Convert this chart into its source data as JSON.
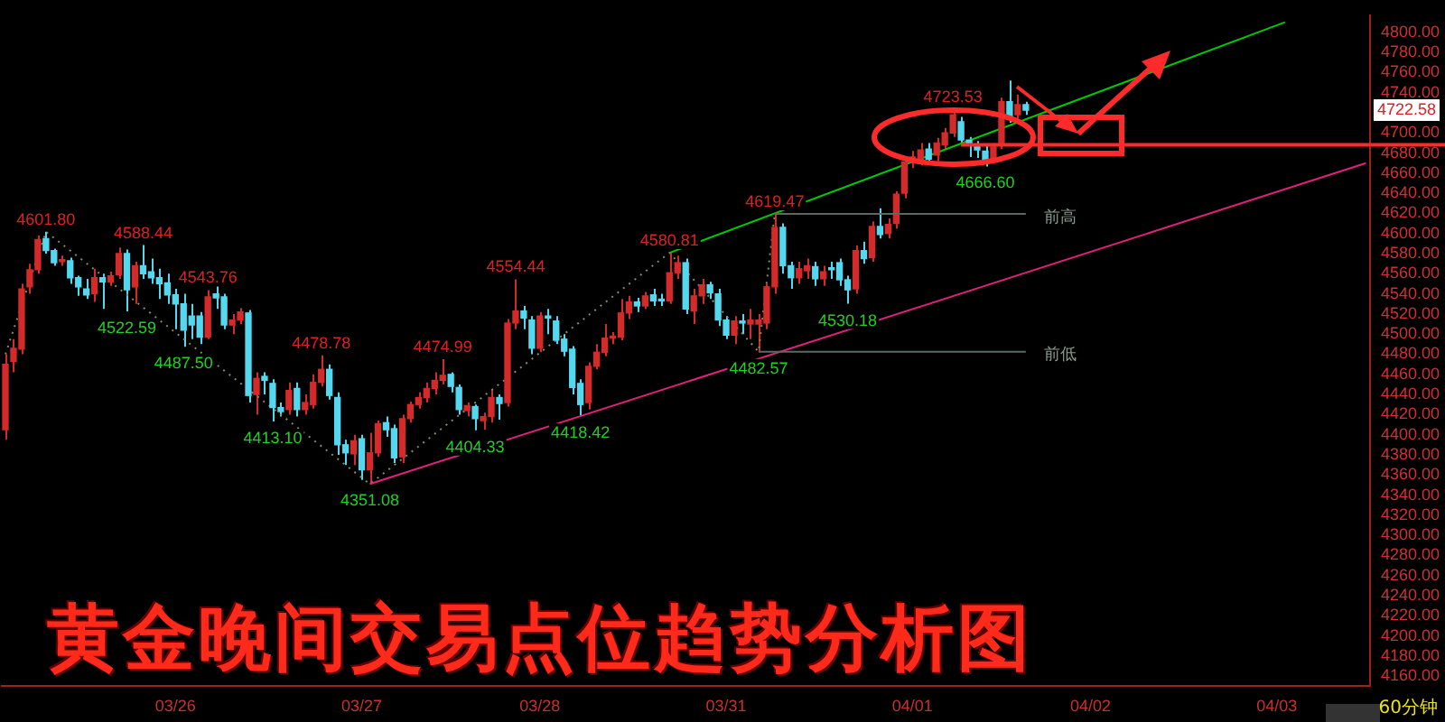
{
  "chart_data": {
    "type": "candlestick",
    "title": "黄金晚间交易点位趋势分析图",
    "categories": [
      null,
      null,
      null,
      null,
      null,
      null,
      null,
      null,
      null,
      null,
      null,
      null,
      null,
      null,
      null,
      null,
      null,
      null,
      null,
      null,
      null,
      "03/26",
      null,
      null,
      null,
      null,
      null,
      null,
      null,
      null,
      null,
      null,
      null,
      null,
      null,
      null,
      null,
      null,
      null,
      null,
      null,
      null,
      null,
      null,
      "03/27",
      null,
      null,
      null,
      null,
      null,
      null,
      null,
      null,
      null,
      null,
      null,
      null,
      null,
      null,
      null,
      null,
      null,
      null,
      null,
      null,
      null,
      "03/28",
      null,
      null,
      null,
      null,
      null,
      null,
      null,
      null,
      null,
      null,
      null,
      null,
      null,
      null,
      null,
      null,
      null,
      null,
      null,
      null,
      null,
      null,
      "03/31",
      null,
      null,
      null,
      null,
      null,
      null,
      null,
      null,
      null,
      null,
      null,
      null,
      null,
      null,
      null,
      null,
      null,
      null,
      null,
      null,
      null,
      null,
      "04/01",
      null,
      null,
      null,
      null,
      null,
      null,
      null,
      null,
      null,
      null,
      null,
      null,
      null,
      null,
      null,
      null,
      null,
      null,
      null,
      null,
      null,
      "04/02",
      null,
      null,
      null,
      null,
      null,
      null,
      null,
      null,
      null,
      null,
      null,
      null,
      null,
      null,
      null,
      null,
      null,
      null,
      null,
      null,
      null,
      null,
      "04/03",
      null,
      null,
      null,
      null,
      null,
      null,
      null,
      null,
      null,
      null,
      null
    ],
    "ohlc": [
      [
        4405,
        4480,
        4395,
        4470
      ],
      [
        4473,
        4495,
        4462,
        4486
      ],
      [
        4485,
        4550,
        4480,
        4545
      ],
      [
        4547,
        4570,
        4540,
        4564
      ],
      [
        4564,
        4598,
        4560,
        4594
      ],
      [
        4595,
        4601.8,
        4580,
        4583
      ],
      [
        4583,
        4585,
        4568,
        4571
      ],
      [
        4572,
        4578,
        4568,
        4574
      ],
      [
        4573,
        4576,
        4550,
        4556
      ],
      [
        4556,
        4558,
        4538,
        4547
      ],
      [
        4545,
        4555,
        4535,
        4539
      ],
      [
        4540,
        4565,
        4532,
        4556
      ],
      [
        4556,
        4560,
        4525,
        4552
      ],
      [
        4552,
        4562,
        4548,
        4558
      ],
      [
        4559,
        4586,
        4555,
        4580
      ],
      [
        4580,
        4584,
        4522.59,
        4544
      ],
      [
        4547,
        4572,
        4530,
        4568
      ],
      [
        4568,
        4588.44,
        4555,
        4560
      ],
      [
        4562,
        4575,
        4550,
        4556
      ],
      [
        4556,
        4565,
        4535,
        4550
      ],
      [
        4551,
        4560,
        4530,
        4539
      ],
      [
        4539,
        4545,
        4505,
        4530
      ],
      [
        4530,
        4540,
        4487.5,
        4504
      ],
      [
        4518,
        4530,
        4495,
        4509
      ],
      [
        4518,
        4522,
        4490,
        4497
      ],
      [
        4497,
        4543.76,
        4495,
        4537
      ],
      [
        4540,
        4548,
        4525,
        4536
      ],
      [
        4537,
        4540,
        4505,
        4509
      ],
      [
        4509,
        4520,
        4500,
        4514
      ],
      [
        4514,
        4526,
        4510,
        4522
      ],
      [
        4521,
        4524,
        4432,
        4439
      ],
      [
        4440,
        4462,
        4420,
        4456
      ],
      [
        4458,
        4462,
        4440,
        4454
      ],
      [
        4451,
        4455,
        4413.1,
        4427
      ],
      [
        4427,
        4432,
        4418,
        4423
      ],
      [
        4425,
        4452,
        4420,
        4444
      ],
      [
        4446,
        4452,
        4418,
        4425
      ],
      [
        4425,
        4440,
        4420,
        4432
      ],
      [
        4430,
        4460,
        4426,
        4452
      ],
      [
        4452,
        4478.78,
        4448,
        4465
      ],
      [
        4465,
        4470,
        4435,
        4439
      ],
      [
        4437,
        4442,
        4380,
        4390
      ],
      [
        4390,
        4395,
        4370,
        4382
      ],
      [
        4381,
        4400,
        4370,
        4394
      ],
      [
        4396,
        4400,
        4355,
        4365
      ],
      [
        4365,
        4402,
        4351.08,
        4382
      ],
      [
        4382,
        4414,
        4378,
        4411
      ],
      [
        4412,
        4418,
        4398,
        4405
      ],
      [
        4406,
        4410,
        4372,
        4377
      ],
      [
        4378,
        4420,
        4372,
        4416
      ],
      [
        4416,
        4433,
        4412,
        4430
      ],
      [
        4430,
        4442,
        4426,
        4437
      ],
      [
        4437,
        4452,
        4432,
        4446
      ],
      [
        4446,
        4462,
        4440,
        4454
      ],
      [
        4454,
        4474.99,
        4450,
        4459
      ],
      [
        4460,
        4462,
        4442,
        4448
      ],
      [
        4447,
        4450,
        4420,
        4425
      ],
      [
        4424,
        4432,
        4418,
        4429
      ],
      [
        4428,
        4430,
        4404.33,
        4416
      ],
      [
        4414,
        4422,
        4405,
        4418
      ],
      [
        4418,
        4445,
        4412,
        4437
      ],
      [
        4437,
        4440,
        4415,
        4431
      ],
      [
        4432,
        4515,
        4428,
        4511
      ],
      [
        4511,
        4554.44,
        4505,
        4523
      ],
      [
        4523,
        4528,
        4505,
        4516
      ],
      [
        4514,
        4518,
        4480,
        4486
      ],
      [
        4486,
        4522,
        4482,
        4518
      ],
      [
        4518,
        4525,
        4500,
        4516
      ],
      [
        4513,
        4518,
        4490,
        4494
      ],
      [
        4495,
        4500,
        4478,
        4483
      ],
      [
        4485,
        4488,
        4440,
        4447
      ],
      [
        4451,
        4455,
        4418.42,
        4430
      ],
      [
        4432,
        4472,
        4425,
        4468
      ],
      [
        4468,
        4490,
        4465,
        4482
      ],
      [
        4482,
        4510,
        4478,
        4496
      ],
      [
        4496,
        4502,
        4490,
        4498
      ],
      [
        4497,
        4535,
        4494,
        4521
      ],
      [
        4521,
        4538,
        4515,
        4532
      ],
      [
        4532,
        4536,
        4522,
        4528
      ],
      [
        4528,
        4542,
        4525,
        4538
      ],
      [
        4539,
        4545,
        4528,
        4533
      ],
      [
        4534,
        4540,
        4528,
        4533
      ],
      [
        4533,
        4580.81,
        4530,
        4561
      ],
      [
        4561,
        4578,
        4555,
        4571
      ],
      [
        4571,
        4575,
        4520,
        4525
      ],
      [
        4523,
        4545,
        4510,
        4538
      ],
      [
        4538,
        4555,
        4530,
        4549
      ],
      [
        4549,
        4552,
        4535,
        4541
      ],
      [
        4540,
        4545,
        4508,
        4514
      ],
      [
        4514,
        4518,
        4495,
        4499
      ],
      [
        4499,
        4518,
        4490,
        4513
      ],
      [
        4513,
        4520,
        4500,
        4511
      ],
      [
        4510,
        4525,
        4495,
        4514
      ],
      [
        4510,
        4520,
        4482.57,
        4514
      ],
      [
        4511,
        4550,
        4505,
        4547
      ],
      [
        4547,
        4619.47,
        4540,
        4606
      ],
      [
        4606,
        4610,
        4560,
        4568
      ],
      [
        4568,
        4572,
        4545,
        4556
      ],
      [
        4556,
        4572,
        4550,
        4565
      ],
      [
        4563,
        4575,
        4555,
        4568
      ],
      [
        4567,
        4572,
        4548,
        4555
      ],
      [
        4555,
        4568,
        4548,
        4562
      ],
      [
        4566,
        4572,
        4555,
        4564
      ],
      [
        4571,
        4575,
        4548,
        4554
      ],
      [
        4554,
        4558,
        4530.18,
        4544
      ],
      [
        4545,
        4588,
        4540,
        4583
      ],
      [
        4583,
        4592,
        4570,
        4575
      ],
      [
        4576,
        4612,
        4572,
        4607
      ],
      [
        4607,
        4625,
        4595,
        4599
      ],
      [
        4600,
        4615,
        4595,
        4609
      ],
      [
        4610,
        4642,
        4605,
        4639
      ],
      [
        4640,
        4675,
        4635,
        4671
      ],
      [
        4671,
        4682,
        4665,
        4676
      ],
      [
        4672,
        4690,
        4668,
        4683
      ],
      [
        4684,
        4690,
        4668,
        4674
      ],
      [
        4678,
        4695,
        4672,
        4690
      ],
      [
        4688,
        4705,
        4684,
        4700
      ],
      [
        4700,
        4723.53,
        4696,
        4718
      ],
      [
        4711,
        4716,
        4688,
        4693
      ],
      [
        4693,
        4696,
        4676,
        4688
      ],
      [
        4687,
        4692,
        4675,
        4683
      ],
      [
        4682,
        4688,
        4666.6,
        4674
      ],
      [
        4675,
        4690,
        4670,
        4686
      ],
      [
        4688,
        4735,
        4684,
        4731
      ],
      [
        4731,
        4752,
        4710,
        4714
      ],
      [
        4718,
        4738,
        4712,
        4728
      ],
      [
        4728,
        4731,
        4718,
        4722.58
      ],
      null,
      null,
      null,
      null,
      null,
      null,
      null,
      null,
      null,
      null,
      null,
      null,
      null,
      null,
      null,
      null,
      null,
      null,
      null,
      null,
      null,
      null,
      null,
      null,
      null,
      null,
      null,
      null,
      null,
      null,
      null,
      null,
      null,
      null,
      null,
      null,
      null,
      null,
      null,
      null,
      null,
      null
    ],
    "colors": [
      "#d42a2a",
      "#d42a2a",
      "#d42a2a",
      "#d42a2a",
      "#d42a2a",
      "#54d8f0",
      "#54d8f0",
      "#d42a2a",
      "#54d8f0",
      "#54d8f0",
      "#54d8f0",
      "#d42a2a",
      "#54d8f0",
      "#d42a2a",
      "#d42a2a",
      "#54d8f0",
      "#d42a2a",
      "#54d8f0",
      "#54d8f0",
      "#54d8f0",
      "#54d8f0",
      "#54d8f0",
      "#54d8f0",
      "#54d8f0",
      "#54d8f0",
      "#d42a2a",
      "#54d8f0",
      "#54d8f0",
      "#d42a2a",
      "#d42a2a",
      "#54d8f0",
      "#d42a2a",
      "#54d8f0",
      "#54d8f0",
      "#54d8f0",
      "#d42a2a",
      "#54d8f0",
      "#d42a2a",
      "#d42a2a",
      "#d42a2a",
      "#54d8f0",
      "#54d8f0",
      "#54d8f0",
      "#d42a2a",
      "#54d8f0",
      "#d42a2a",
      "#d42a2a",
      "#54d8f0",
      "#54d8f0",
      "#d42a2a",
      "#d42a2a",
      "#d42a2a",
      "#d42a2a",
      "#d42a2a",
      "#d42a2a",
      "#54d8f0",
      "#54d8f0",
      "#d42a2a",
      "#54d8f0",
      "#d42a2a",
      "#d42a2a",
      "#54d8f0",
      "#d42a2a",
      "#d42a2a",
      "#54d8f0",
      "#54d8f0",
      "#d42a2a",
      "#54d8f0",
      "#54d8f0",
      "#54d8f0",
      "#54d8f0",
      "#54d8f0",
      "#d42a2a",
      "#d42a2a",
      "#d42a2a",
      "#d42a2a",
      "#d42a2a",
      "#d42a2a",
      "#54d8f0",
      "#d42a2a",
      "#54d8f0",
      "#54d8f0",
      "#d42a2a",
      "#d42a2a",
      "#54d8f0",
      "#d42a2a",
      "#d42a2a",
      "#54d8f0",
      "#54d8f0",
      "#54d8f0",
      "#d42a2a",
      "#54d8f0",
      "#d42a2a",
      "#d42a2a",
      "#d42a2a",
      "#d42a2a",
      "#54d8f0",
      "#54d8f0",
      "#d42a2a",
      "#d42a2a",
      "#54d8f0",
      "#d42a2a",
      "#54d8f0",
      "#54d8f0",
      "#54d8f0",
      "#d42a2a",
      "#54d8f0",
      "#d42a2a",
      "#54d8f0",
      "#d42a2a",
      "#d42a2a",
      "#d42a2a",
      "#d42a2a",
      "#d42a2a",
      "#54d8f0",
      "#d42a2a",
      "#d42a2a",
      "#d42a2a",
      "#54d8f0",
      "#54d8f0",
      "#54d8f0",
      "#54d8f0",
      "#d42a2a",
      "#d42a2a",
      "#54d8f0",
      "#d42a2a",
      "#54d8f0",
      null,
      null,
      null,
      null,
      null,
      null,
      null,
      null,
      null,
      null,
      null,
      null,
      null,
      null,
      null,
      null,
      null,
      null,
      null,
      null,
      null,
      null,
      null,
      null,
      null,
      null,
      null,
      null,
      null,
      null,
      null,
      null,
      null,
      null,
      null,
      null,
      null,
      null,
      null,
      null,
      null,
      null
    ],
    "series": [
      {
        "type": "line",
        "color": "#00c800",
        "values": [
          null,
          null,
          null,
          null,
          null,
          null,
          null,
          null,
          null,
          null,
          null,
          null,
          null,
          null,
          null,
          null,
          null,
          null,
          null,
          null,
          null,
          null,
          null,
          null,
          null,
          null,
          null,
          null,
          null,
          null,
          null,
          null,
          null,
          null,
          null,
          null,
          null,
          null,
          null,
          null,
          null,
          null,
          null,
          null,
          null,
          null,
          null,
          null,
          null,
          null,
          null,
          null,
          null,
          null,
          null,
          null,
          null,
          null,
          null,
          null,
          null,
          null,
          null,
          null,
          null,
          null,
          null,
          null,
          null,
          null,
          null,
          null,
          null,
          null,
          null,
          null,
          null,
          null,
          null,
          null,
          null,
          null,
          4580.81,
          null,
          null,
          null,
          null,
          null,
          null,
          null,
          null,
          null,
          null,
          null,
          null,
          null,
          null,
          null,
          null,
          null,
          null,
          null,
          null,
          null,
          null,
          null,
          null,
          null,
          null,
          null,
          null,
          null,
          null,
          null,
          null,
          null,
          null,
          null,
          null,
          null,
          null,
          null,
          null,
          null,
          null,
          null,
          null,
          null,
          null,
          null,
          null,
          null,
          null,
          null,
          null,
          null,
          null,
          null,
          null,
          null,
          null,
          null,
          null,
          null,
          null,
          null,
          null,
          null,
          null,
          null,
          null,
          null,
          null,
          null,
          null,
          null,
          null,
          null,
          4810,
          null,
          null,
          null,
          null,
          null,
          null,
          null,
          null,
          null,
          null
        ]
      },
      {
        "type": "line",
        "color": "#e0207a",
        "values": [
          null,
          null,
          null,
          null,
          null,
          null,
          null,
          null,
          null,
          null,
          null,
          null,
          null,
          null,
          null,
          null,
          null,
          null,
          null,
          null,
          null,
          null,
          null,
          null,
          null,
          null,
          null,
          null,
          null,
          null,
          null,
          null,
          null,
          null,
          null,
          null,
          null,
          null,
          null,
          null,
          null,
          null,
          null,
          null,
          null,
          4351.08,
          null,
          null,
          null,
          null,
          null,
          null,
          null,
          null,
          null,
          null,
          null,
          null,
          null,
          null,
          null,
          null,
          null,
          null,
          null,
          null,
          null,
          null,
          null,
          null,
          null,
          null,
          null,
          null,
          null,
          null,
          null,
          null,
          null,
          null,
          null,
          null,
          null,
          null,
          null,
          null,
          null,
          null,
          null,
          null,
          null,
          null,
          null,
          null,
          null,
          null,
          null,
          null,
          null,
          null,
          null,
          null,
          null,
          null,
          null,
          null,
          null,
          null,
          null,
          null,
          null,
          null,
          null,
          null,
          null,
          null,
          null,
          null,
          null,
          null,
          null,
          null,
          null,
          null,
          null,
          null,
          null,
          null,
          null,
          null,
          null,
          null,
          null,
          null,
          null,
          null,
          null,
          null,
          null,
          null,
          null,
          null,
          null,
          null,
          null,
          null,
          null,
          null,
          null,
          null,
          null,
          null,
          null,
          null,
          null,
          null,
          null,
          null,
          null,
          null,
          null,
          null,
          null,
          null,
          null,
          null,
          null,
          null,
          4670
        ]
      },
      {
        "type": "line",
        "color": "#8a8a60",
        "line_style": "dotted",
        "values": [
          4480,
          null,
          null,
          null,
          null,
          4601.8,
          null,
          null,
          null,
          null,
          null,
          null,
          null,
          null,
          null,
          null,
          null,
          null,
          null,
          null,
          null,
          null,
          null,
          null,
          null,
          null,
          null,
          null,
          null,
          null,
          null,
          null,
          null,
          null,
          null,
          null,
          null,
          null,
          null,
          null,
          null,
          null,
          null,
          null,
          null,
          4351.08,
          null,
          null,
          null,
          null,
          null,
          null,
          null,
          null,
          null,
          null,
          null,
          null,
          null,
          null,
          null,
          null,
          null,
          null,
          null,
          null,
          null,
          null,
          null,
          null,
          null,
          null,
          null,
          null,
          null,
          null,
          null,
          null,
          null,
          null,
          null,
          null,
          4580.81,
          null,
          null,
          null,
          null,
          null,
          null,
          null,
          null,
          null,
          null,
          4482.57,
          null,
          4619.47,
          null,
          null,
          null,
          null,
          null,
          null,
          null,
          null,
          null,
          null,
          null,
          null,
          null,
          null,
          null,
          null,
          null,
          null,
          null,
          null,
          null,
          null,
          null,
          null,
          null,
          null,
          null,
          null,
          null,
          null,
          null,
          null,
          null,
          null,
          null,
          null,
          null,
          null,
          null,
          null,
          null,
          null,
          null,
          null,
          null,
          null,
          null,
          null,
          null,
          null,
          null,
          null,
          null,
          null,
          null,
          null,
          null,
          null,
          null,
          null,
          null,
          null,
          null,
          null,
          null,
          null,
          null,
          null,
          null,
          null,
          null,
          null,
          null
        ]
      }
    ],
    "ref_lines": [
      {
        "axis": "y",
        "value": 4619.47,
        "label": "前高",
        "color": "#5a6a62"
      },
      {
        "axis": "y",
        "value": 4482.57,
        "label": "前低",
        "color": "#5a6a62"
      },
      {
        "axis": "y",
        "value": 4688,
        "color": "#ff2a2a"
      }
    ],
    "annotations": [
      {
        "text": "4601.80",
        "y": 4601.8
      },
      {
        "text": "4588.44",
        "y": 4588.44
      },
      {
        "text": "4543.76",
        "y": 4543.76
      },
      {
        "text": "4522.59",
        "y": 4522.59
      },
      {
        "text": "4487.50",
        "y": 4487.5
      },
      {
        "text": "4478.78",
        "y": 4478.78
      },
      {
        "text": "4413.10",
        "y": 4413.1
      },
      {
        "text": "4351.08",
        "y": 4351.08
      },
      {
        "text": "4474.99",
        "y": 4474.99
      },
      {
        "text": "4404.33",
        "y": 4404.33
      },
      {
        "text": "4554.44",
        "y": 4554.44
      },
      {
        "text": "4418.42",
        "y": 4418.42
      },
      {
        "text": "4580.81",
        "y": 4580.81
      },
      {
        "text": "4482.57",
        "y": 4482.57
      },
      {
        "text": "4619.47",
        "y": 4619.47
      },
      {
        "text": "4530.18",
        "y": 4530.18
      },
      {
        "text": "4723.53",
        "y": 4723.53
      },
      {
        "text": "4666.60",
        "y": 4666.6
      },
      {
        "text": "4722.58",
        "y": 4722.58
      },
      "60分钟"
    ],
    "ylim": [
      4150,
      4817
    ],
    "yticks": [
      {
        "value": 4160,
        "label": "4160.00"
      },
      {
        "value": 4180,
        "label": "4180.00"
      },
      {
        "value": 4200,
        "label": "4200.00"
      },
      {
        "value": 4220,
        "label": "4220.00"
      },
      {
        "value": 4240,
        "label": "4240.00"
      },
      {
        "value": 4260,
        "label": "4260.00"
      },
      {
        "value": 4280,
        "label": "4280.00"
      },
      {
        "value": 4300,
        "label": "4300.00"
      },
      {
        "value": 4320,
        "label": "4320.00"
      },
      {
        "value": 4340,
        "label": "4340.00"
      },
      {
        "value": 4360,
        "label": "4360.00"
      },
      {
        "value": 4380,
        "label": "4380.00"
      },
      {
        "value": 4400,
        "label": "4400.00"
      },
      {
        "value": 4420,
        "label": "4420.00"
      },
      {
        "value": 4440,
        "label": "4440.00"
      },
      {
        "value": 4460,
        "label": "4460.00"
      },
      {
        "value": 4480,
        "label": "4480.00"
      },
      {
        "value": 4500,
        "label": "4500.00"
      },
      {
        "value": 4520,
        "label": "4520.00"
      },
      {
        "value": 4540,
        "label": "4540.00"
      },
      {
        "value": 4560,
        "label": "4560.00"
      },
      {
        "value": 4580,
        "label": "4580.00"
      },
      {
        "value": 4600,
        "label": "4600.00"
      },
      {
        "value": 4620,
        "label": "4620.00"
      },
      {
        "value": 4640,
        "label": "4640.00"
      },
      {
        "value": 4660,
        "label": "4660.00"
      },
      {
        "value": 4680,
        "label": "4680.00"
      },
      {
        "value": 4700,
        "label": "4700.00"
      },
      {
        "value": 4740,
        "label": "4740.00"
      },
      {
        "value": 4760,
        "label": "4760.00"
      },
      {
        "value": 4780,
        "label": "4780.00"
      },
      {
        "value": 4800,
        "label": "4800.00"
      }
    ],
    "grid": false,
    "legend": false
  }
}
